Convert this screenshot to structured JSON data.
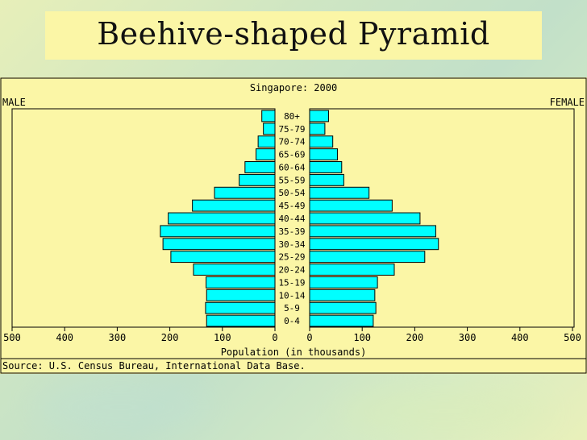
{
  "slide": {
    "title": "Beehive-shaped Pyramid"
  },
  "chart_data": {
    "type": "bar",
    "title": "Singapore: 2000",
    "left_label": "MALE",
    "right_label": "FEMALE",
    "xlabel": "Population (in thousands)",
    "source": "Source: U.S. Census Bureau, International Data Base.",
    "xlim": [
      0,
      500
    ],
    "ticks": [
      500,
      400,
      300,
      200,
      100,
      0
    ],
    "tick_labels": [
      "500",
      "400",
      "300",
      "200",
      "100",
      "0"
    ],
    "categories": [
      "0-4",
      "5-9",
      "10-14",
      "15-19",
      "20-24",
      "25-29",
      "30-34",
      "35-39",
      "40-44",
      "45-49",
      "50-54",
      "55-59",
      "60-64",
      "65-69",
      "70-74",
      "75-79",
      "80+"
    ],
    "series": [
      {
        "name": "MALE",
        "values": [
          130,
          132,
          130,
          131,
          155,
          198,
          213,
          218,
          203,
          157,
          115,
          68,
          57,
          36,
          32,
          22,
          25
        ]
      },
      {
        "name": "FEMALE",
        "values": [
          121,
          126,
          124,
          129,
          161,
          219,
          245,
          240,
          210,
          157,
          113,
          65,
          61,
          53,
          44,
          29,
          36
        ]
      }
    ],
    "bar_color": "#00ffff",
    "grid": false
  }
}
